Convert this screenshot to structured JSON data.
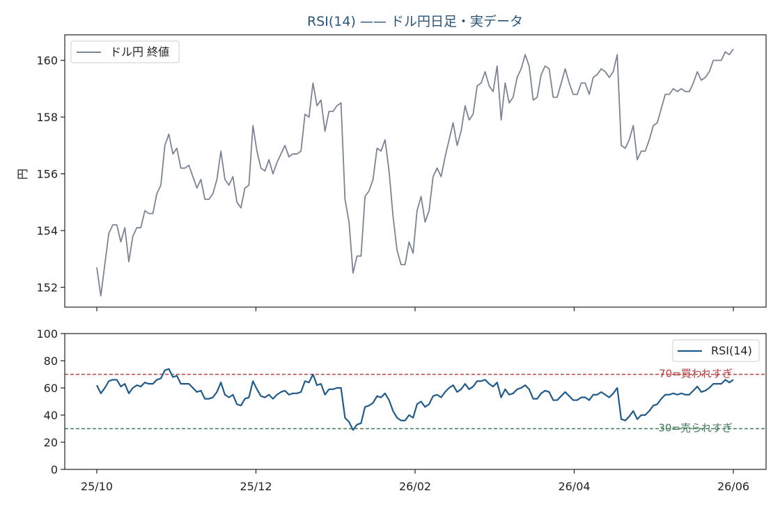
{
  "chart_data": {
    "title": "RSI(14) —— ドル円日足・実データ",
    "x_ticks": [
      "25/10",
      "25/12",
      "26/02",
      "26/04",
      "26/06"
    ],
    "x_range": [
      "25/10",
      "26/06"
    ],
    "price": {
      "type": "line",
      "ylabel": "円",
      "ylim": [
        151.3,
        160.9
      ],
      "yticks": [
        152,
        154,
        156,
        158,
        160
      ],
      "series": [
        {
          "name": "ドル円 終値",
          "color": "#7a8494",
          "values": [
            152.7,
            151.7,
            152.8,
            153.9,
            154.2,
            154.2,
            153.6,
            154.1,
            152.9,
            153.8,
            154.1,
            154.1,
            154.7,
            154.6,
            154.6,
            155.3,
            155.6,
            157.0,
            157.4,
            156.7,
            156.9,
            156.2,
            156.2,
            156.3,
            155.9,
            155.5,
            155.8,
            155.1,
            155.1,
            155.3,
            155.8,
            156.8,
            155.8,
            155.6,
            155.9,
            155.0,
            154.8,
            155.5,
            155.6,
            157.7,
            156.8,
            156.2,
            156.1,
            156.5,
            156.0,
            156.4,
            156.7,
            157.0,
            156.6,
            156.7,
            156.7,
            156.8,
            158.1,
            158.0,
            159.2,
            158.4,
            158.6,
            157.5,
            158.2,
            158.2,
            158.4,
            158.5,
            155.1,
            154.3,
            152.5,
            153.1,
            153.1,
            155.2,
            155.4,
            155.8,
            156.9,
            156.8,
            157.2,
            156.1,
            154.5,
            153.3,
            152.8,
            152.8,
            153.6,
            153.2,
            154.7,
            155.2,
            154.3,
            154.7,
            155.9,
            156.2,
            155.9,
            156.6,
            157.2,
            157.8,
            157.0,
            157.5,
            158.4,
            157.9,
            158.1,
            159.1,
            159.2,
            159.6,
            159.1,
            158.9,
            159.8,
            157.9,
            159.2,
            158.5,
            158.7,
            159.4,
            159.7,
            160.2,
            159.8,
            158.6,
            158.7,
            159.5,
            159.8,
            159.7,
            158.7,
            158.7,
            159.2,
            159.7,
            159.2,
            158.8,
            158.8,
            159.2,
            159.2,
            158.8,
            159.4,
            159.5,
            159.7,
            159.6,
            159.4,
            159.6,
            160.2,
            157.0,
            156.9,
            157.2,
            157.7,
            156.5,
            156.8,
            156.8,
            157.2,
            157.7,
            157.8,
            158.3,
            158.8,
            158.8,
            159.0,
            158.9,
            159.0,
            158.9,
            158.9,
            159.2,
            159.6,
            159.3,
            159.4,
            159.6,
            160.0,
            160.0,
            160.0,
            160.3,
            160.2,
            160.4
          ]
        }
      ],
      "legend": "top-left"
    },
    "rsi": {
      "type": "line",
      "ylim": [
        0,
        100
      ],
      "yticks": [
        0,
        20,
        40,
        60,
        80,
        100
      ],
      "series": [
        {
          "name": "RSI(14)",
          "color": "#1f5a8a",
          "values": [
            62,
            56,
            60,
            65,
            66,
            66,
            61,
            63,
            56,
            60,
            62,
            61,
            64,
            63,
            63,
            66,
            67,
            73,
            74,
            68,
            69,
            63,
            63,
            63,
            60,
            57,
            58,
            52,
            52,
            53,
            57,
            64,
            55,
            53,
            55,
            48,
            47,
            52,
            53,
            65,
            59,
            54,
            53,
            55,
            52,
            55,
            57,
            58,
            55,
            56,
            56,
            57,
            65,
            64,
            70,
            62,
            63,
            55,
            59,
            59,
            60,
            60,
            38,
            35,
            29,
            33,
            34,
            46,
            47,
            49,
            54,
            53,
            56,
            51,
            43,
            38,
            36,
            36,
            40,
            38,
            48,
            50,
            46,
            48,
            54,
            55,
            53,
            57,
            60,
            62,
            57,
            59,
            63,
            59,
            61,
            65,
            65,
            66,
            63,
            61,
            64,
            53,
            59,
            55,
            56,
            59,
            60,
            62,
            59,
            52,
            52,
            56,
            58,
            57,
            51,
            51,
            54,
            57,
            54,
            51,
            51,
            53,
            53,
            51,
            55,
            55,
            57,
            55,
            53,
            56,
            60,
            37,
            36,
            39,
            43,
            37,
            40,
            40,
            43,
            47,
            48,
            52,
            55,
            55,
            56,
            55,
            56,
            55,
            55,
            58,
            61,
            57,
            58,
            60,
            63,
            63,
            63,
            66,
            64,
            66
          ]
        }
      ],
      "legend": "top-right",
      "reference_lines": [
        {
          "value": 70,
          "label": "70=買われすぎ",
          "color": "#b5403f"
        },
        {
          "value": 30,
          "label": "30=売られすぎ",
          "color": "#3f7a55"
        }
      ]
    }
  }
}
